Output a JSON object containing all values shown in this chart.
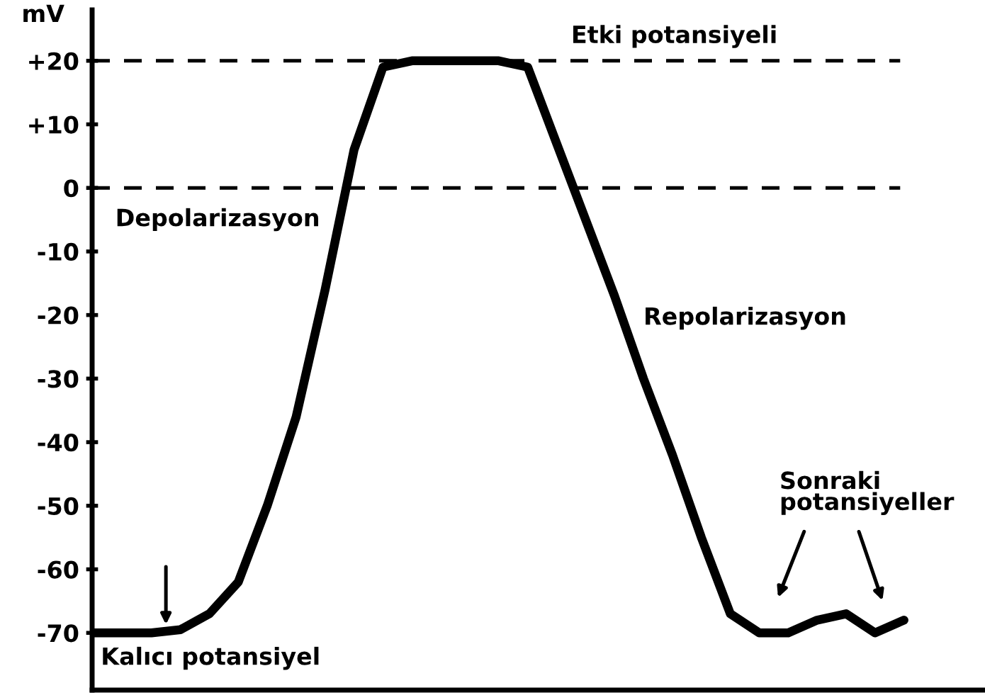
{
  "chart_data": {
    "type": "line",
    "ylabel": "mV",
    "categories": [
      null,
      null,
      null,
      null,
      null,
      null,
      null,
      null,
      null,
      null,
      null,
      null,
      null,
      null,
      null,
      null,
      null,
      null,
      null,
      null,
      null,
      null,
      null,
      null,
      null,
      null,
      null,
      null,
      null
    ],
    "series": [
      {
        "color": "#000000",
        "values": [
          -70,
          -70,
          -70,
          -69.5,
          -67,
          -62,
          -50,
          -36,
          -16,
          6,
          19,
          20,
          20,
          20,
          20,
          19,
          7,
          -5,
          -17,
          -30,
          -42,
          -55,
          -67,
          -70,
          -70,
          -68,
          -67,
          -70,
          -68
        ]
      }
    ],
    "ylim": [
      -79,
      28
    ],
    "yticks": [
      {
        "value": 20,
        "label": "+20"
      },
      {
        "value": 10,
        "label": "+10"
      },
      0,
      -10,
      -20,
      -30,
      -40,
      -50,
      -60,
      -70
    ],
    "ref_lines": [
      {
        "axis": "y",
        "value": 20,
        "color": "#000000",
        "line_style": "dashed"
      },
      {
        "axis": "y",
        "value": 0,
        "color": "#000000",
        "line_style": "dashed"
      }
    ],
    "annotations": [
      "Etki potansiyeli",
      "Depolarizasyon",
      "Repolarizasyon",
      "Sonraki\npotansiyeller",
      "Kalıcı potansiyel"
    ],
    "grid": false,
    "legend": false,
    "marker": "none",
    "line_style": "solid",
    "tick_labels": "y"
  }
}
